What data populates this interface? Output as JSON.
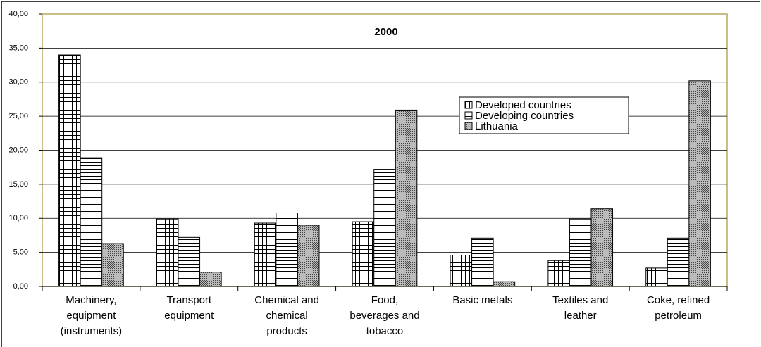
{
  "chart_data": {
    "type": "bar",
    "title": "2000",
    "categories": [
      "Machinery, equipment (instruments)",
      "Transport equipment",
      "Chemical and chemical products",
      "Food, beverages and tobacco",
      "Basic metals",
      "Textiles and leather",
      "Coke, refined petroleum"
    ],
    "series": [
      {
        "name": "Developed countries",
        "color": "#000000",
        "pattern": "grid",
        "values": [
          34.0,
          9.9,
          9.3,
          9.5,
          4.6,
          3.8,
          2.7
        ]
      },
      {
        "name": "Developing countries",
        "color": "#000000",
        "pattern": "hlines",
        "values": [
          18.9,
          7.2,
          10.8,
          17.2,
          7.1,
          9.9,
          7.1
        ]
      },
      {
        "name": "Lithuania",
        "color": "#000000",
        "pattern": "crosshatch",
        "values": [
          6.3,
          2.1,
          9.0,
          25.9,
          0.7,
          11.4,
          30.2
        ]
      }
    ],
    "ylim": [
      0,
      40
    ],
    "yticks": [
      {
        "value": 0,
        "label": "0,00"
      },
      {
        "value": 5,
        "label": "5,00"
      },
      {
        "value": 10,
        "label": "10,00"
      },
      {
        "value": 15,
        "label": "15,00"
      },
      {
        "value": 20,
        "label": "20,00"
      },
      {
        "value": 25,
        "label": "25,00"
      },
      {
        "value": 30,
        "label": "30,00"
      },
      {
        "value": 35,
        "label": "35,00"
      },
      {
        "value": 40,
        "label": "40,00"
      }
    ],
    "grid": true
  }
}
